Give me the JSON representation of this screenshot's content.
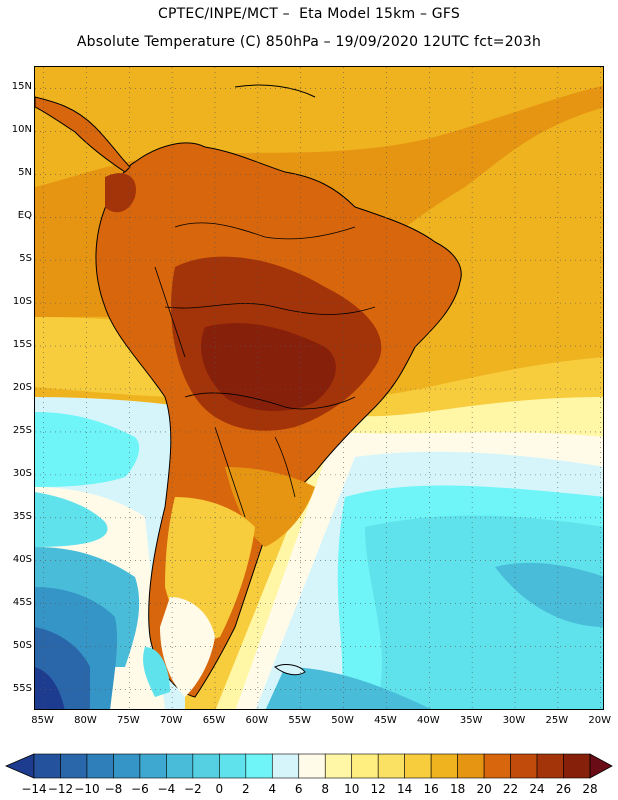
{
  "header": {
    "title_line1": "CPTEC/INPE/MCT –  Eta Model 15km – GFS",
    "title_line2": "Absolute Temperature (C) 850hPa – 19/09/2020 12UTC fct=203h"
  },
  "map": {
    "latitude_labels": [
      "15N",
      "10N",
      "5N",
      "EQ",
      "5S",
      "10S",
      "15S",
      "20S",
      "25S",
      "30S",
      "35S",
      "40S",
      "45S",
      "50S",
      "55S"
    ],
    "longitude_labels": [
      "85W",
      "80W",
      "75W",
      "70W",
      "65W",
      "60W",
      "55W",
      "50W",
      "45W",
      "40W",
      "35W",
      "30W",
      "25W",
      "20W"
    ],
    "lon_range": [
      -86,
      -19.5
    ],
    "lat_range": [
      -57.5,
      17.5
    ]
  },
  "colorbar": {
    "labels": [
      "-14",
      "-12",
      "-10",
      "-8",
      "-6",
      "-4",
      "-2",
      "0",
      "2",
      "4",
      "6",
      "8",
      "10",
      "12",
      "14",
      "16",
      "18",
      "20",
      "22",
      "24",
      "26",
      "28"
    ],
    "colors": [
      "#1e3c8f",
      "#25529c",
      "#2a67aa",
      "#2f7fba",
      "#3595c6",
      "#3ea8d0",
      "#49bcd9",
      "#55d0e2",
      "#5fe2ec",
      "#6ff5f7",
      "#d6f5fb",
      "#fffbe8",
      "#fff7a6",
      "#ffee80",
      "#fbe163",
      "#f7cc3d",
      "#efb31f",
      "#e69512",
      "#d8660c",
      "#c14b0a",
      "#a33308",
      "#87200a",
      "#6a0c16"
    ]
  }
}
